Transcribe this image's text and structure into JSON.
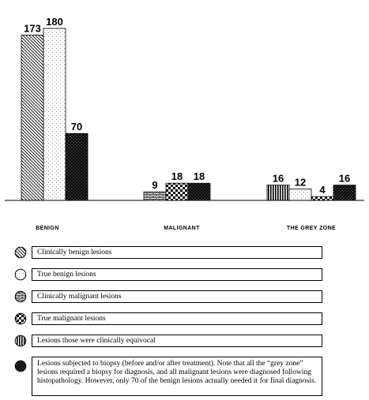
{
  "chart_data": {
    "type": "bar",
    "categories": [
      "BENIGN",
      "MALIGNANT",
      "THE GREY ZONE"
    ],
    "ylim": [
      0,
      180
    ],
    "grid": false,
    "bars": [
      {
        "group": 0,
        "pattern": "clinically_benign",
        "value": 173
      },
      {
        "group": 0,
        "pattern": "true_benign",
        "value": 180
      },
      {
        "group": 0,
        "pattern": "biopsy",
        "value": 70
      },
      {
        "group": 1,
        "pattern": "clinically_malignant",
        "value": 9
      },
      {
        "group": 1,
        "pattern": "true_malignant",
        "value": 18
      },
      {
        "group": 1,
        "pattern": "biopsy",
        "value": 18
      },
      {
        "group": 2,
        "pattern": "equivocal",
        "value": 16
      },
      {
        "group": 2,
        "pattern": "true_benign",
        "value": 12
      },
      {
        "group": 2,
        "pattern": "true_malignant",
        "value": 4
      },
      {
        "group": 2,
        "pattern": "biopsy",
        "value": 16
      }
    ]
  },
  "legend": [
    {
      "pattern": "clinically_benign",
      "icon": "diagonal-hatch-circle-icon",
      "text": "Clinically benign lesions"
    },
    {
      "pattern": "true_benign",
      "icon": "dotted-circle-icon",
      "text": "True benign lesions"
    },
    {
      "pattern": "clinically_malignant",
      "icon": "brick-circle-icon",
      "text": "Clinically malignant lesions"
    },
    {
      "pattern": "true_malignant",
      "icon": "checker-circle-icon",
      "text": "True malignant lesions"
    },
    {
      "pattern": "equivocal",
      "icon": "vertical-stripe-circle-icon",
      "text": "Lesions those were clinically equivocal"
    },
    {
      "pattern": "biopsy",
      "icon": "dense-dot-circle-icon",
      "text": "Lesions subjected to biopsy (before and/or after treatment). Note that all the “grey zone” lesions required a biopsy for diagnosis, and all malignant lesions were diagnosed following histopathology. However, only 70 of the benign lesions actually needed it for final diagnosis."
    }
  ]
}
